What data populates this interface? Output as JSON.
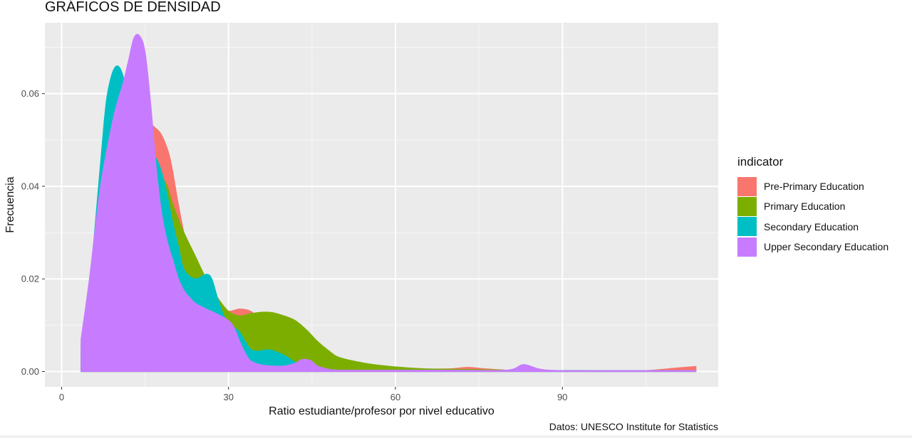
{
  "chart_data": {
    "type": "area",
    "title": "GRÁFICOS DE DENSIDAD",
    "xlabel": "Ratio estudiante/profesor por nivel educativo",
    "ylabel": "Frecuencia",
    "caption": "Datos: UNESCO Institute for Statistics",
    "xlim": [
      -3,
      118
    ],
    "ylim": [
      -0.0033,
      0.0753
    ],
    "x_ticks": [
      0,
      30,
      60,
      90
    ],
    "x_tick_labels": [
      "0",
      "30",
      "60",
      "90"
    ],
    "y_ticks": [
      0,
      0.02,
      0.04,
      0.06
    ],
    "y_tick_labels": [
      "0.00",
      "0.02",
      "0.04",
      "0.06"
    ],
    "grid": true,
    "legend_position": "right",
    "legend_title": "indicator",
    "series": [
      {
        "name": "Pre-Primary Education",
        "color": "#F8766D",
        "x": [
          3.5,
          5,
          7,
          9,
          10.5,
          12,
          13.5,
          15,
          16.5,
          18,
          19.5,
          21,
          22.5,
          24,
          26,
          28,
          30,
          32,
          34,
          36,
          40,
          45,
          50,
          55,
          60,
          65,
          70,
          73,
          76,
          80,
          85,
          90,
          95,
          100,
          105,
          110,
          114
        ],
        "y": [
          0.006,
          0.015,
          0.032,
          0.048,
          0.055,
          0.058,
          0.057,
          0.055,
          0.053,
          0.051,
          0.046,
          0.036,
          0.027,
          0.021,
          0.016,
          0.014,
          0.013,
          0.0135,
          0.013,
          0.011,
          0.008,
          0.004,
          0.0015,
          0.0008,
          0.0005,
          0.0005,
          0.0006,
          0.0009,
          0.0006,
          0.0003,
          0.0002,
          0.0002,
          0.0002,
          0.0002,
          0.0002,
          0.0007,
          0.0011
        ]
      },
      {
        "name": "Primary Education",
        "color": "#7CAE00",
        "x": [
          3.5,
          5,
          7,
          9,
          10,
          11,
          12,
          13,
          14,
          15,
          16,
          17,
          18,
          19,
          20,
          22,
          24,
          26,
          28,
          30,
          32,
          34,
          36,
          38,
          40,
          42,
          44,
          46,
          48,
          50,
          55,
          60,
          65,
          70,
          75,
          80,
          90,
          100,
          114
        ],
        "y": [
          0.003,
          0.01,
          0.026,
          0.045,
          0.053,
          0.057,
          0.058,
          0.056,
          0.052,
          0.048,
          0.045,
          0.043,
          0.042,
          0.04,
          0.036,
          0.03,
          0.025,
          0.02,
          0.016,
          0.013,
          0.012,
          0.0125,
          0.0128,
          0.0127,
          0.012,
          0.011,
          0.009,
          0.0065,
          0.0045,
          0.003,
          0.0017,
          0.001,
          0.0006,
          0.0005,
          0.0004,
          0.0003,
          0.0002,
          0.0002,
          0.0002
        ]
      },
      {
        "name": "Secondary Education",
        "color": "#00BFC4",
        "x": [
          3.5,
          5,
          7,
          8,
          9,
          10,
          11,
          12,
          13,
          14,
          15,
          16,
          17,
          18,
          19,
          20,
          21,
          22,
          24,
          26,
          27,
          28,
          29,
          30,
          31,
          32,
          33,
          34,
          35,
          36,
          37,
          38,
          40,
          42,
          44,
          46,
          50,
          60,
          70,
          80,
          90,
          100,
          114
        ],
        "y": [
          0.005,
          0.018,
          0.045,
          0.058,
          0.064,
          0.066,
          0.064,
          0.058,
          0.052,
          0.049,
          0.048,
          0.047,
          0.046,
          0.043,
          0.038,
          0.032,
          0.027,
          0.022,
          0.02,
          0.021,
          0.02,
          0.016,
          0.0125,
          0.0103,
          0.0095,
          0.0085,
          0.0065,
          0.0048,
          0.0044,
          0.0045,
          0.0047,
          0.0045,
          0.0035,
          0.002,
          0.001,
          0.0004,
          0.0002,
          0.0002,
          0.0002,
          0.0002,
          0.0002,
          0.0002,
          0.0002
        ]
      },
      {
        "name": "Upper Secondary Education",
        "color": "#C77CFF",
        "x": [
          3.5,
          5,
          7,
          9,
          10,
          11,
          12,
          13,
          14,
          15,
          16,
          17,
          18,
          19,
          20,
          21,
          22,
          23,
          24,
          26,
          28,
          30,
          31,
          32,
          33,
          34,
          36,
          38,
          40,
          42,
          43,
          44,
          45,
          46,
          48,
          50,
          60,
          70,
          80,
          83,
          86,
          90,
          100,
          114
        ],
        "y": [
          0.007,
          0.02,
          0.04,
          0.053,
          0.058,
          0.062,
          0.067,
          0.072,
          0.0725,
          0.069,
          0.058,
          0.044,
          0.034,
          0.028,
          0.024,
          0.02,
          0.0175,
          0.016,
          0.0148,
          0.0135,
          0.0124,
          0.011,
          0.0095,
          0.0065,
          0.004,
          0.0023,
          0.0014,
          0.0012,
          0.0012,
          0.0018,
          0.0025,
          0.0026,
          0.0022,
          0.0012,
          0.0005,
          0.0003,
          0.0003,
          0.0003,
          0.0003,
          0.0015,
          0.0005,
          0.0002,
          0.0002,
          0.0002
        ]
      }
    ]
  }
}
